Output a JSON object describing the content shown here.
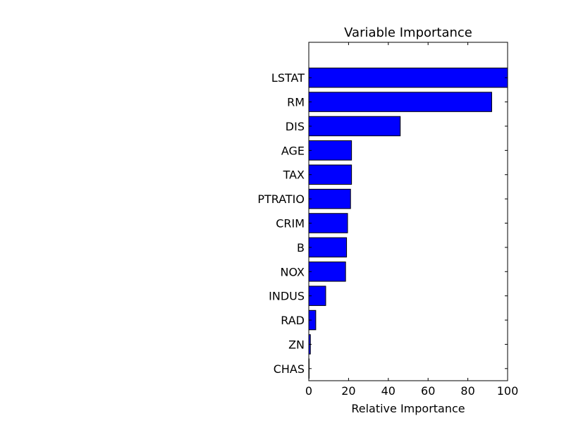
{
  "chart_data": {
    "type": "bar",
    "orientation": "horizontal",
    "title": "Variable Importance",
    "xlabel": "Relative Importance",
    "ylabel": "",
    "xlim": [
      0,
      100
    ],
    "xticks": [
      0,
      20,
      40,
      60,
      80,
      100
    ],
    "grid": false,
    "bar_color": "#0000ff",
    "categories": [
      "LSTAT",
      "RM",
      "DIS",
      "AGE",
      "TAX",
      "PTRATIO",
      "CRIM",
      "B",
      "NOX",
      "INDUS",
      "RAD",
      "ZN",
      "CHAS"
    ],
    "values": [
      100,
      92,
      46,
      21.5,
      21.5,
      21,
      19.5,
      19,
      18.5,
      8.5,
      3.5,
      0.8,
      0.1
    ]
  }
}
